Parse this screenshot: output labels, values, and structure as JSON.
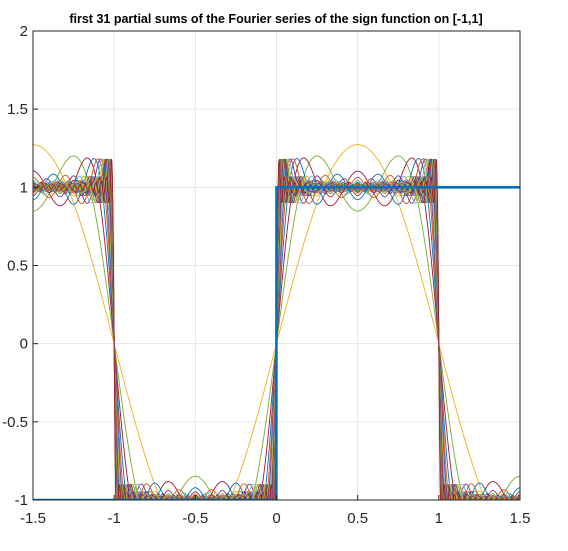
{
  "chart_data": {
    "type": "line",
    "title": "first 31 partial sums of the Fourier series of the sign function on [-1,1]",
    "xlabel": "",
    "ylabel": "",
    "xlim": [
      -1.5,
      1.5
    ],
    "ylim": [
      -1,
      2
    ],
    "xticks": [
      -1.5,
      -1,
      -0.5,
      0,
      0.5,
      1,
      1.5
    ],
    "xtick_labels": [
      "-1.5",
      "-1",
      "-0.5",
      "0",
      "0.5",
      "1",
      "1.5"
    ],
    "yticks": [
      -1,
      -0.5,
      0,
      0.5,
      1,
      1.5,
      2
    ],
    "ytick_labels": [
      "-1",
      "-0.5",
      "0",
      "0.5",
      "1",
      "1.5",
      "2"
    ],
    "grid": true,
    "box": true,
    "sign_function": {
      "x": [
        -1.5,
        -0.001,
        0,
        1.5
      ],
      "y": [
        -1,
        -1,
        1,
        1
      ],
      "color": "#0072BD"
    },
    "partial_sums": {
      "count": 31,
      "formula": "S_N(x) = (4/pi) * sum_{k=1..N} sin((2k-1)*pi*x)/(2k-1)",
      "x_start": -1.5,
      "x_end": 1.5,
      "colors": [
        "#EDB120",
        "#77AC30",
        "#A2142F",
        "#0072BD",
        "#D95319",
        "#7E2F8E",
        "#4DBEEE"
      ]
    }
  }
}
